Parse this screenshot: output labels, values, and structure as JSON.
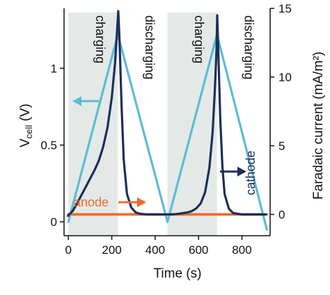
{
  "chart_data": {
    "type": "line",
    "title": "",
    "xlabel": "Time (s)",
    "ylabel_left_base": "V",
    "ylabel_left_sub": "cell",
    "ylabel_left_unit": " (V)",
    "ylabel_right": "Faradaic current (mA/m²)",
    "xlim": [
      -20,
      930
    ],
    "ylim_left": [
      -0.09,
      1.39
    ],
    "ylim_right": [
      -1.55,
      15.0
    ],
    "xticks": [
      {
        "v": 0,
        "label": "0"
      },
      {
        "v": 200,
        "label": "200"
      },
      {
        "v": 400,
        "label": "400"
      },
      {
        "v": 600,
        "label": "600"
      },
      {
        "v": 800,
        "label": "800"
      }
    ],
    "yticks_left": [
      {
        "v": 0,
        "label": "0"
      },
      {
        "v": 0.5,
        "label": "0.5"
      },
      {
        "v": 1,
        "label": "1"
      }
    ],
    "yticks_right": [
      {
        "v": 0,
        "label": "0"
      },
      {
        "v": 5,
        "label": "5"
      },
      {
        "v": 10,
        "label": "10"
      },
      {
        "v": 15,
        "label": "15"
      }
    ],
    "phases": [
      {
        "label": "charging",
        "start": 0,
        "end": 228,
        "shaded": true
      },
      {
        "label": "discharging",
        "start": 228,
        "end": 457,
        "shaded": false
      },
      {
        "label": "charging",
        "start": 457,
        "end": 685,
        "shaded": true
      },
      {
        "label": "discharging",
        "start": 685,
        "end": 915,
        "shaded": false
      }
    ],
    "colors": {
      "vcell": "#5bbcd4",
      "cathode": "#1c2f5a",
      "anode": "#ef6a2c",
      "shade": "#e4e9e8",
      "axis": "#111111"
    },
    "series": [
      {
        "key": "vcell",
        "axis": "left",
        "x": [
          0,
          228,
          457,
          685,
          915
        ],
        "y": [
          0.0,
          1.22,
          0.0,
          1.22,
          -0.05
        ]
      },
      {
        "key": "cathode",
        "axis": "right",
        "x": [
          -2,
          20,
          40,
          60,
          80,
          100,
          120,
          140,
          160,
          180,
          200,
          215,
          225,
          230,
          235,
          245,
          255,
          270,
          290,
          310,
          330,
          360,
          400,
          457,
          470,
          490,
          510,
          530,
          550,
          570,
          590,
          610,
          630,
          650,
          665,
          675,
          683,
          686,
          690,
          700,
          710,
          720,
          740,
          760,
          800,
          850,
          910
        ],
        "y": [
          -0.1,
          0.25,
          0.8,
          1.4,
          2.0,
          2.6,
          3.2,
          3.9,
          4.9,
          6.3,
          8.5,
          11.0,
          13.5,
          14.8,
          13.0,
          8.0,
          4.0,
          1.5,
          0.5,
          0.15,
          0.05,
          0.0,
          0.0,
          0.0,
          0.0,
          0.02,
          0.05,
          0.1,
          0.15,
          0.25,
          0.45,
          0.8,
          1.6,
          3.4,
          6.0,
          9.0,
          12.0,
          14.5,
          12.5,
          7.0,
          3.5,
          1.5,
          0.4,
          0.1,
          0.0,
          0.0,
          0.0
        ]
      },
      {
        "key": "anode",
        "axis": "right",
        "x": [
          0,
          915
        ],
        "y": [
          0.0,
          0.0
        ]
      }
    ],
    "annotations": {
      "cathode_label": "cathode",
      "anode_label": "anode"
    }
  }
}
